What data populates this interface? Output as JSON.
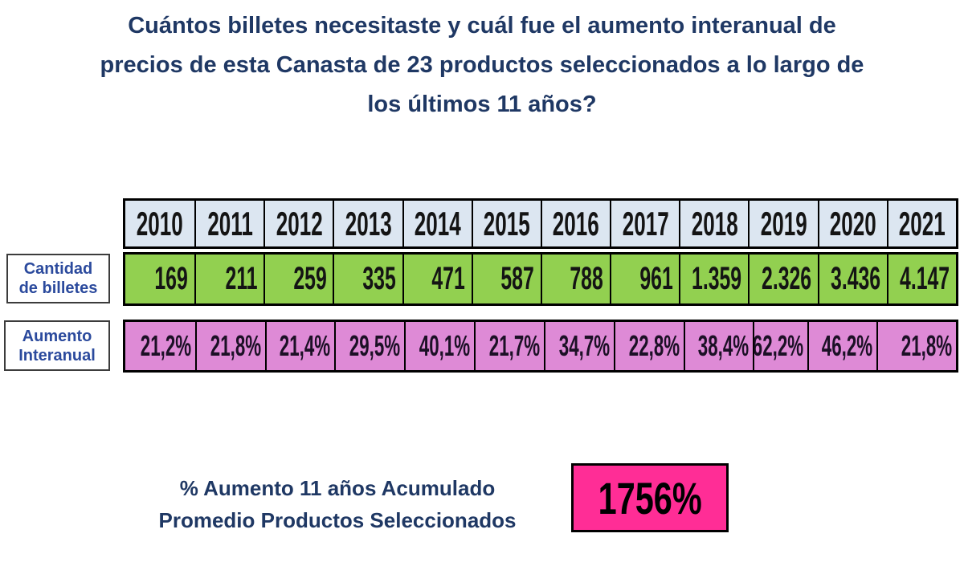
{
  "title": {
    "text": "Cuántos billetes necesitaste y cuál fue el aumento interanual de precios de esta Canasta de 23 productos seleccionados a lo largo de los últimos 11 años?",
    "lines": [
      "Cuántos billetes necesitaste y cuál fue el aumento interanual de",
      "precios de esta Canasta de 23 productos seleccionados a lo largo de",
      "los últimos 11 años?"
    ]
  },
  "table": {
    "years": [
      "2010",
      "2011",
      "2012",
      "2013",
      "2014",
      "2015",
      "2016",
      "2017",
      "2018",
      "2019",
      "2020",
      "2021"
    ],
    "rows": [
      {
        "label": "Cantidad de billetes",
        "label_lines": [
          "Cantidad",
          "de billetes"
        ],
        "values": [
          "169",
          "211",
          "259",
          "335",
          "471",
          "587",
          "788",
          "961",
          "1.359",
          "2.326",
          "3.436",
          "4.147"
        ]
      },
      {
        "label": "Aumento Interanual",
        "label_lines": [
          "Aumento",
          "Interanual"
        ],
        "values": [
          "21,2%",
          "21,8%",
          "21,4%",
          "29,5%",
          "40,1%",
          "21,7%",
          "34,7%",
          "22,8%",
          "38,4%",
          "62,2%",
          "46,2%",
          "21,8%"
        ]
      }
    ]
  },
  "summary": {
    "label": "% Aumento 11 años Acumulado Promedio Productos Seleccionados",
    "label_lines": [
      "% Aumento 11 años Acumulado",
      "Promedio Productos Seleccionados"
    ],
    "value": "1756%"
  },
  "colors": {
    "title_navy": "#1F3864",
    "label_blue": "#2B4A9D",
    "header_bg": "#DCE6F1",
    "green": "#92D050",
    "pink": "#DE8AD6",
    "hot_pink": "#FF2D96",
    "border": "#000000"
  },
  "chart_data": {
    "type": "table",
    "title": "Cuántos billetes necesitaste y cuál fue el aumento interanual de precios de esta Canasta de 23 productos seleccionados a lo largo de los últimos 11 años?",
    "categories": [
      "2010",
      "2011",
      "2012",
      "2013",
      "2014",
      "2015",
      "2016",
      "2017",
      "2018",
      "2019",
      "2020",
      "2021"
    ],
    "series": [
      {
        "name": "Cantidad de billetes",
        "values": [
          169,
          211,
          259,
          335,
          471,
          587,
          788,
          961,
          1359,
          2326,
          3436,
          4147
        ]
      },
      {
        "name": "Aumento Interanual (%)",
        "values": [
          21.2,
          21.8,
          21.4,
          29.5,
          40.1,
          21.7,
          34.7,
          22.8,
          38.4,
          62.2,
          46.2,
          21.8
        ]
      }
    ],
    "summary": {
      "label": "% Aumento 11 años Acumulado Promedio Productos Seleccionados",
      "value_pct": 1756
    }
  }
}
